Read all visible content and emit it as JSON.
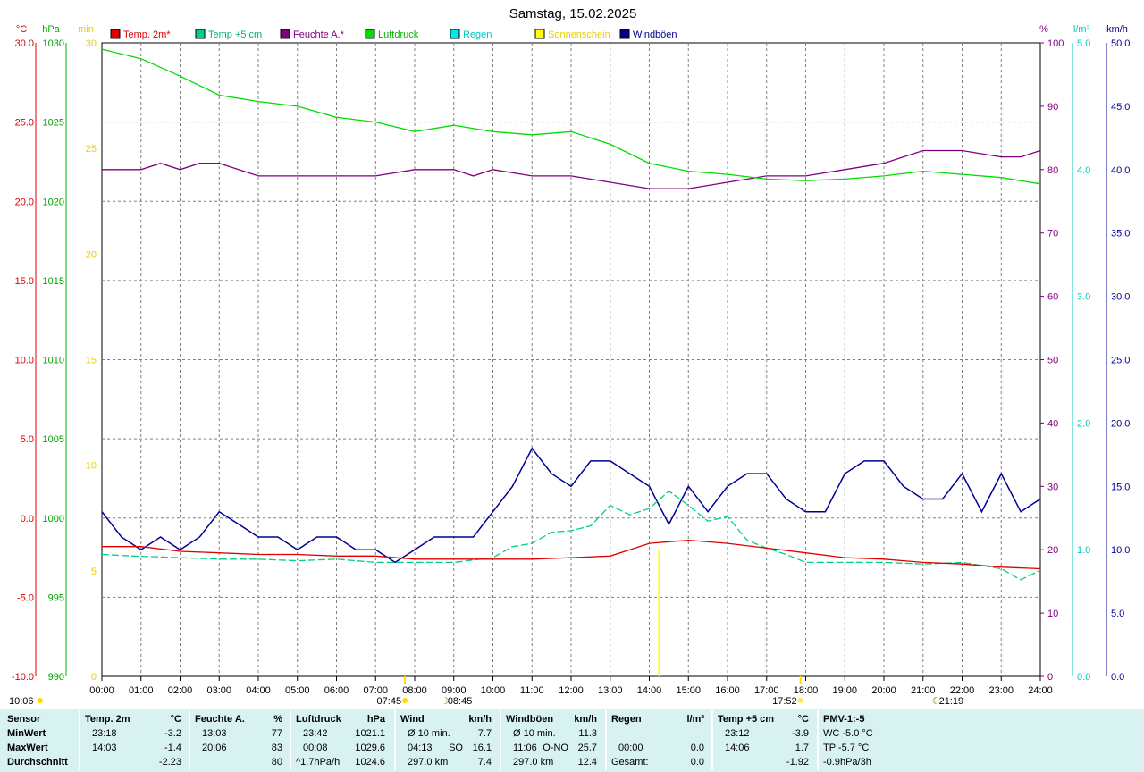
{
  "title": "Samstag, 15.02.2025",
  "colors": {
    "temp2m": "#e00000",
    "temp5cm": "#00d080",
    "humidity": "#800080",
    "pressure": "#00dc00",
    "rain": "#00e8e8",
    "sun": "#ffff00",
    "gust": "#000090",
    "grid": "#808080",
    "stats_bg": "#d8f2f2"
  },
  "axes": {
    "left_temp": {
      "unit": "°C",
      "range": [
        -10,
        30
      ],
      "ticks": [
        "30.0",
        "25.0",
        "20.0",
        "15.0",
        "10.0",
        "5.0",
        "0.0",
        "-5.0",
        "-10.0"
      ]
    },
    "left_pressure": {
      "unit": "hPa",
      "range": [
        990,
        1030
      ],
      "ticks": [
        "1030",
        "1025",
        "1020",
        "1015",
        "1010",
        "1005",
        "1000",
        "995",
        "990"
      ]
    },
    "left_sun": {
      "unit": "min",
      "range": [
        0,
        30
      ],
      "ticks": [
        "30",
        "25",
        "20",
        "15",
        "10",
        "5",
        "0"
      ]
    },
    "right_humidity": {
      "unit": "%",
      "range": [
        0,
        100
      ],
      "ticks": [
        "100",
        "90",
        "80",
        "70",
        "60",
        "50",
        "40",
        "30",
        "20",
        "10",
        "0"
      ]
    },
    "right_rain": {
      "unit": "l/m²",
      "range": [
        0,
        5
      ],
      "ticks": [
        "5.0",
        "4.0",
        "3.0",
        "2.0",
        "1.0",
        "0.0"
      ]
    },
    "right_wind": {
      "unit": "km/h",
      "range": [
        0,
        50
      ],
      "ticks": [
        "50.0",
        "45.0",
        "40.0",
        "35.0",
        "30.0",
        "25.0",
        "20.0",
        "15.0",
        "10.0",
        "5.0",
        "0.0"
      ]
    },
    "x_labels": [
      "00:00",
      "01:00",
      "02:00",
      "03:00",
      "04:00",
      "05:00",
      "06:00",
      "07:00",
      "08:00",
      "09:00",
      "10:00",
      "11:00",
      "12:00",
      "13:00",
      "14:00",
      "15:00",
      "16:00",
      "17:00",
      "18:00",
      "19:00",
      "20:00",
      "21:00",
      "22:00",
      "23:00",
      "24:00"
    ]
  },
  "legend": [
    {
      "key": "temp2m",
      "label": "Temp. 2m*"
    },
    {
      "key": "temp5cm",
      "label": "Temp +5 cm"
    },
    {
      "key": "humidity",
      "label": "Feuchte A.*"
    },
    {
      "key": "pressure",
      "label": "Luftdruck"
    },
    {
      "key": "rain",
      "label": "Regen"
    },
    {
      "key": "sun",
      "label": "Sonnenschein"
    },
    {
      "key": "gust",
      "label": "Windböen"
    }
  ],
  "markers": {
    "sunrise": "07:45",
    "sunset": "17:52",
    "moonrise": "08:45",
    "moonset": "21:19",
    "corner_time": "10:06"
  },
  "chart_data": {
    "type": "line",
    "x_unit": "hours",
    "series": [
      {
        "name": "Temp. 2m*",
        "axis": "°C",
        "x": [
          0,
          1,
          2,
          3,
          4,
          5,
          6,
          7,
          8,
          9,
          10,
          11,
          12,
          13,
          13.5,
          14,
          14.5,
          15,
          16,
          17,
          18,
          19,
          20,
          21,
          22,
          23,
          24
        ],
        "y": [
          -1.8,
          -1.8,
          -2.1,
          -2.2,
          -2.3,
          -2.3,
          -2.4,
          -2.4,
          -2.6,
          -2.6,
          -2.6,
          -2.6,
          -2.5,
          -2.4,
          -2.0,
          -1.6,
          -1.5,
          -1.4,
          -1.6,
          -1.9,
          -2.2,
          -2.5,
          -2.6,
          -2.8,
          -2.9,
          -3.1,
          -3.2
        ]
      },
      {
        "name": "Temp +5 cm",
        "axis": "°C",
        "x": [
          0,
          0.8,
          2,
          3,
          4,
          5,
          6,
          7,
          8,
          9,
          10,
          10.5,
          11,
          11.5,
          12,
          12.5,
          13,
          13.5,
          14,
          14.5,
          15,
          15.5,
          16,
          16.5,
          17,
          17.5,
          18,
          19,
          20,
          21,
          22,
          22.5,
          23,
          23.5,
          24
        ],
        "y": [
          -2.3,
          -2.4,
          -2.5,
          -2.6,
          -2.6,
          -2.7,
          -2.6,
          -2.8,
          -2.8,
          -2.8,
          -2.5,
          -1.8,
          -1.6,
          -0.9,
          -0.8,
          -0.5,
          0.8,
          0.2,
          0.6,
          1.7,
          0.8,
          -0.2,
          0.1,
          -1.4,
          -1.9,
          -2.3,
          -2.8,
          -2.8,
          -2.8,
          -2.9,
          -2.8,
          -3.0,
          -3.2,
          -3.9,
          -3.3
        ]
      },
      {
        "name": "Feuchte A.*",
        "axis": "%",
        "x": [
          0,
          1,
          1.5,
          2,
          2.5,
          3,
          4,
          5,
          6,
          7,
          8,
          9,
          9.5,
          10,
          11,
          12,
          13,
          14,
          15,
          16,
          17,
          18,
          19,
          20,
          20.5,
          21,
          22,
          23,
          23.5,
          24
        ],
        "y": [
          80,
          80,
          81,
          80,
          81,
          81,
          79,
          79,
          79,
          79,
          80,
          80,
          79,
          80,
          79,
          79,
          78,
          77,
          77,
          78,
          79,
          79,
          80,
          81,
          82,
          83,
          83,
          82,
          82,
          83
        ]
      },
      {
        "name": "Luftdruck",
        "axis": "hPa",
        "x": [
          0,
          1,
          2,
          3,
          4,
          5,
          6,
          7,
          8,
          9,
          10,
          11,
          12,
          13,
          14,
          15,
          16,
          17,
          18,
          19,
          20,
          21,
          22,
          23,
          24
        ],
        "y": [
          1029.6,
          1029.0,
          1027.9,
          1026.7,
          1026.3,
          1026.0,
          1025.3,
          1025.0,
          1024.4,
          1024.8,
          1024.4,
          1024.2,
          1024.4,
          1023.6,
          1022.4,
          1021.9,
          1021.7,
          1021.4,
          1021.3,
          1021.4,
          1021.6,
          1021.9,
          1021.7,
          1021.5,
          1021.1
        ]
      },
      {
        "name": "Windböen",
        "axis": "km/h",
        "x": [
          0,
          0.5,
          1,
          1.5,
          2,
          2.5,
          3,
          3.5,
          4,
          4.5,
          5,
          5.5,
          6,
          6.5,
          7,
          7.5,
          8,
          8.5,
          9,
          9.5,
          10,
          10.5,
          11,
          11.5,
          12,
          12.5,
          13,
          13.5,
          14,
          14.5,
          15,
          15.5,
          16,
          16.5,
          17,
          17.5,
          18,
          18.5,
          19,
          19.5,
          20,
          20.5,
          21,
          21.5,
          22,
          22.5,
          23,
          23.5,
          24
        ],
        "y": [
          13,
          11,
          10,
          11,
          10,
          11,
          13,
          12,
          11,
          11,
          10,
          11,
          11,
          10,
          10,
          9,
          10,
          11,
          11,
          11,
          13,
          15,
          18,
          16,
          15,
          17,
          17,
          16,
          15,
          12,
          15,
          13,
          15,
          16,
          16,
          14,
          13,
          13,
          16,
          17,
          17,
          15,
          14,
          14,
          16,
          13,
          16,
          13,
          14
        ]
      }
    ],
    "sunshine_minutes": [
      {
        "x": 14.25,
        "y": 6
      }
    ],
    "rain_mm": []
  },
  "stats": {
    "columns": [
      {
        "header": "Sensor",
        "rows": [
          "MinWert",
          "MaxWert",
          "Durchschnitt"
        ]
      },
      {
        "header": "Temp. 2m",
        "unit": "°C",
        "rows": [
          [
            "23:18",
            "-3.2"
          ],
          [
            "14:03",
            "-1.4"
          ],
          [
            "",
            "-2.23"
          ]
        ]
      },
      {
        "header": "Feuchte A.",
        "unit": "%",
        "rows": [
          [
            "13:03",
            "77"
          ],
          [
            "20:06",
            "83"
          ],
          [
            "",
            "80"
          ]
        ]
      },
      {
        "header": "Luftdruck",
        "unit": "hPa",
        "rows": [
          [
            "23:42",
            "1021.1"
          ],
          [
            "00:08",
            "1029.6"
          ],
          [
            "^1.7hPa/h",
            "1024.6"
          ]
        ]
      },
      {
        "header": "Wind",
        "unit": "km/h",
        "rows": [
          [
            "Ø 10 min.",
            "",
            "7.7"
          ],
          [
            "04:13",
            "SO",
            "16.1"
          ],
          [
            "297.0 km",
            "",
            "7.4"
          ]
        ]
      },
      {
        "header": "Windböen",
        "unit": "km/h",
        "rows": [
          [
            "Ø 10 min.",
            "",
            "11.3"
          ],
          [
            "11:06",
            "O-NO",
            "25.7"
          ],
          [
            "297.0 km",
            "",
            "12.4"
          ]
        ]
      },
      {
        "header": "Regen",
        "unit": "l/m²",
        "rows": [
          [
            "",
            ""
          ],
          [
            "00:00",
            "0.0"
          ],
          [
            "Gesamt:",
            "0.0"
          ]
        ]
      },
      {
        "header": "Temp +5 cm",
        "unit": "°C",
        "rows": [
          [
            "23:12",
            "-3.9"
          ],
          [
            "14:06",
            "1.7"
          ],
          [
            "",
            "-1.92"
          ]
        ]
      },
      {
        "header": "PMV-1:-5",
        "rows": [
          "WC -5.0 °C",
          "TP -5.7 °C",
          "-0.9hPa/3h"
        ]
      }
    ]
  }
}
